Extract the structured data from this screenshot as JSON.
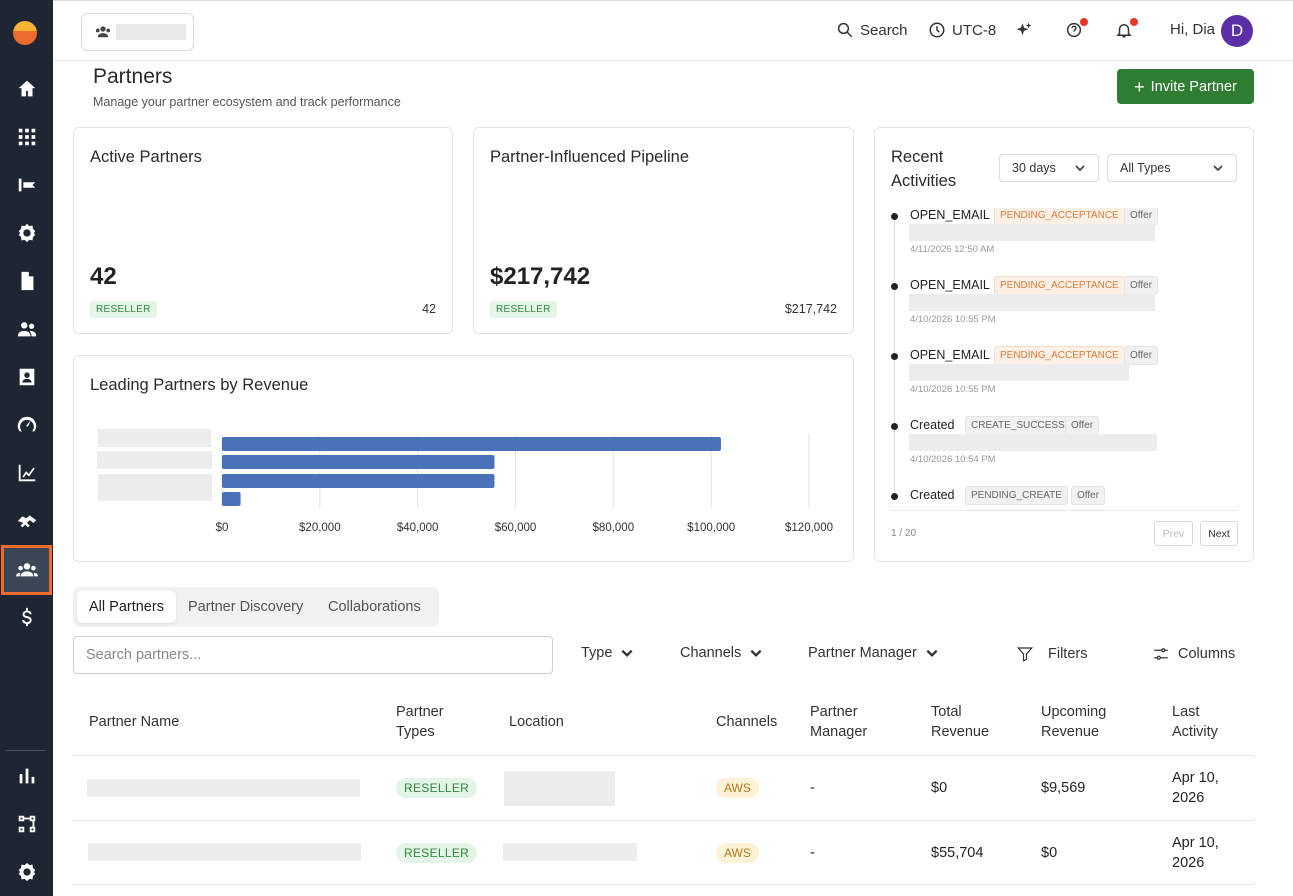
{
  "topbar": {
    "search_label": "Search",
    "timezone": "UTC-8",
    "greeting": "Hi, Dia",
    "avatar_initial": "D"
  },
  "header": {
    "title": "Partners",
    "subtitle": "Manage your partner ecosystem and track performance",
    "invite_button": "Invite Partner"
  },
  "cards": {
    "active_partners": {
      "title": "Active Partners",
      "value": "42",
      "tag": "RESELLER",
      "tag_value": "42"
    },
    "pipeline": {
      "title": "Partner-Influenced Pipeline",
      "value": "$217,742",
      "tag": "RESELLER",
      "tag_value": "$217,742"
    }
  },
  "chart": {
    "title": "Leading Partners by Revenue",
    "tick_labels": [
      "$0",
      "$20,000",
      "$40,000",
      "$60,000",
      "$80,000",
      "$100,000",
      "$120,000"
    ],
    "colors": {
      "bar": "#4a72b8",
      "grid": "#e2e2e2"
    }
  },
  "chart_data": {
    "type": "bar",
    "orientation": "horizontal",
    "title": "Leading Partners by Revenue",
    "categories": [
      "",
      "",
      "",
      ""
    ],
    "values": [
      102000,
      55704,
      55700,
      3800
    ],
    "xlim": [
      0,
      120000
    ],
    "grid": true
  },
  "activities": {
    "title_line1": "Recent",
    "title_line2": "Activities",
    "range_select": "30 days",
    "type_select": "All Types",
    "items": [
      {
        "name": "OPEN_EMAIL",
        "status": "PENDING_ACCEPTANCE",
        "status_kind": "orange",
        "kind": "Offer",
        "time": "4/11/2026 12:50 AM"
      },
      {
        "name": "OPEN_EMAIL",
        "status": "PENDING_ACCEPTANCE",
        "status_kind": "orange",
        "kind": "Offer",
        "time": "4/10/2026 10:55 PM"
      },
      {
        "name": "OPEN_EMAIL",
        "status": "PENDING_ACCEPTANCE",
        "status_kind": "orange",
        "kind": "Offer",
        "time": "4/10/2026 10:55 PM"
      },
      {
        "name": "Created",
        "status": "CREATE_SUCCESS",
        "status_kind": "grey",
        "kind": "Offer",
        "time": "4/10/2026 10:54 PM"
      },
      {
        "name": "Created",
        "status": "PENDING_CREATE",
        "status_kind": "grey",
        "kind": "Offer",
        "time": ""
      }
    ],
    "page_count": "1 / 20",
    "prev_label": "Prev",
    "next_label": "Next"
  },
  "tabs": [
    "All Partners",
    "Partner Discovery",
    "Collaborations"
  ],
  "filters": {
    "search_placeholder": "Search partners...",
    "type": "Type",
    "channels": "Channels",
    "partner_manager": "Partner Manager",
    "filters": "Filters",
    "columns": "Columns"
  },
  "table": {
    "headers": {
      "partner_name": "Partner Name",
      "partner_types_1": "Partner",
      "partner_types_2": "Types",
      "location": "Location",
      "channels": "Channels",
      "partner_manager_1": "Partner",
      "partner_manager_2": "Manager",
      "total_revenue_1": "Total",
      "total_revenue_2": "Revenue",
      "upcoming_revenue_1": "Upcoming",
      "upcoming_revenue_2": "Revenue",
      "last_activity_1": "Last",
      "last_activity_2": "Activity"
    },
    "rows": [
      {
        "type": "RESELLER",
        "channel": "AWS",
        "manager": "-",
        "total": "$0",
        "upcoming": "$9,569",
        "last_1": "Apr 10,",
        "last_2": "2026"
      },
      {
        "type": "RESELLER",
        "channel": "AWS",
        "manager": "-",
        "total": "$55,704",
        "upcoming": "$0",
        "last_1": "Apr 10,",
        "last_2": "2026"
      }
    ]
  },
  "colors": {
    "sidebar_bg": "#1f2633",
    "accent_orange": "#ef6b2b",
    "primary_green": "#2f7d32"
  }
}
